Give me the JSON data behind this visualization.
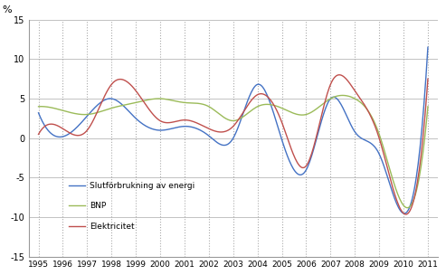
{
  "years": [
    1995,
    1996,
    1997,
    1998,
    1999,
    2000,
    2001,
    2002,
    2003,
    2004,
    2005,
    2006,
    2007,
    2008,
    2009,
    2010,
    2011
  ],
  "slutforbrukning": [
    3.2,
    0.2,
    2.8,
    5.0,
    2.5,
    1.0,
    1.5,
    0.3,
    0.0,
    6.8,
    -0.2,
    -4.0,
    5.0,
    0.8,
    -2.0,
    -9.5,
    11.5
  ],
  "bnp": [
    4.0,
    3.5,
    3.0,
    3.8,
    4.5,
    5.0,
    4.5,
    4.0,
    2.2,
    4.0,
    3.8,
    3.0,
    5.0,
    5.0,
    0.5,
    -8.5,
    4.0
  ],
  "elektricitet": [
    0.5,
    1.2,
    1.0,
    6.8,
    6.0,
    2.2,
    2.3,
    1.2,
    1.5,
    5.5,
    2.0,
    -3.5,
    6.8,
    6.0,
    0.0,
    -9.5,
    7.5
  ],
  "color_slutforbrukning": "#4472C4",
  "color_bnp": "#9BBB59",
  "color_elektricitet": "#C0504D",
  "ylabel": "%",
  "ylim": [
    -15,
    15
  ],
  "yticks": [
    -15,
    -10,
    -5,
    0,
    5,
    10,
    15
  ],
  "legend_slutforbrukning": "Slutförbrukning av energi",
  "legend_bnp": "BNP",
  "legend_elektricitet": "Elektricitet",
  "grid_color": "#aaaaaa",
  "background_color": "#ffffff",
  "figsize": [
    4.93,
    3.04
  ],
  "dpi": 100
}
